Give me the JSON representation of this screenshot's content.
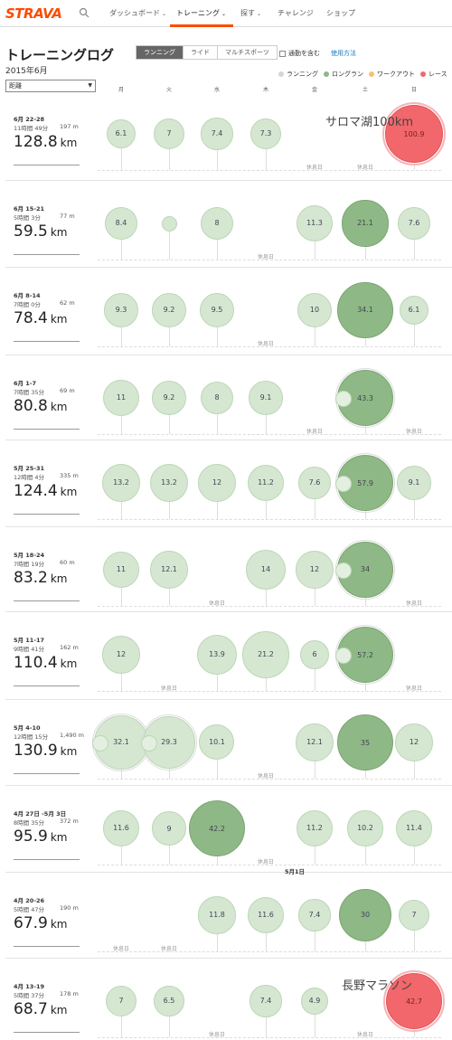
{
  "nav": {
    "logo": "STRAVA",
    "items": [
      {
        "label": "ダッシュボード",
        "caret": true
      },
      {
        "label": "トレーニング",
        "caret": true
      },
      {
        "label": "探す",
        "caret": true
      },
      {
        "label": "チャレンジ",
        "caret": false
      },
      {
        "label": "ショップ",
        "caret": false
      }
    ],
    "active_index": 1,
    "accent": "#fc4c02"
  },
  "header": {
    "title": "トレーニングログ",
    "month": "2015年6月",
    "sport_tabs": [
      "ランニング",
      "ライド",
      "マルチスポーツ"
    ],
    "active_sport": 0,
    "commute_label": "通勤を含む",
    "commute_checked": false,
    "help_link": "使用方法",
    "metric_select": "距離"
  },
  "legend": [
    {
      "label": "ランニング",
      "color": "#d5d5d5"
    },
    {
      "label": "ロングラン",
      "color": "#8eb885"
    },
    {
      "label": "ワークアウト",
      "color": "#f3c26b"
    },
    {
      "label": "レース",
      "color": "#f1676b"
    }
  ],
  "days": [
    "月",
    "火",
    "水",
    "木",
    "金",
    "土",
    "日"
  ],
  "rest_label": "休息日",
  "mid_label": "5月1日",
  "weeks": [
    {
      "date": "6月 22-28",
      "time": "11時間 49分",
      "elev": "197 m",
      "total": "128.8",
      "unit": "km",
      "race_label": "サロマ湖100km",
      "days": [
        {
          "v": "6.1",
          "t": "run"
        },
        {
          "v": "7",
          "t": "run"
        },
        {
          "v": "7.4",
          "t": "run"
        },
        {
          "v": "7.3",
          "t": "run"
        },
        {
          "rest": true
        },
        {
          "rest": true
        },
        {
          "v": "100.9",
          "t": "race"
        }
      ]
    },
    {
      "date": "6月 15-21",
      "time": "5時間 3分",
      "elev": "77 m",
      "total": "59.5",
      "unit": "km",
      "days": [
        {
          "v": "8.4",
          "t": "run"
        },
        {
          "v": "",
          "t": "run"
        },
        {
          "v": "8",
          "t": "run"
        },
        {
          "rest": true
        },
        {
          "v": "11.3",
          "t": "run"
        },
        {
          "v": "21.1",
          "t": "long"
        },
        {
          "v": "7.6",
          "t": "run"
        }
      ]
    },
    {
      "date": "6月 8-14",
      "time": "7時間 0分",
      "elev": "62 m",
      "total": "78.4",
      "unit": "km",
      "days": [
        {
          "v": "9.3",
          "t": "run"
        },
        {
          "v": "9.2",
          "t": "run"
        },
        {
          "v": "9.5",
          "t": "run"
        },
        {
          "rest": true
        },
        {
          "v": "10",
          "t": "run"
        },
        {
          "v": "34.1",
          "t": "long"
        },
        {
          "v": "6.1",
          "t": "run"
        }
      ]
    },
    {
      "date": "6月 1-7",
      "time": "7時間 35分",
      "elev": "69 m",
      "total": "80.8",
      "unit": "km",
      "days": [
        {
          "v": "11",
          "t": "run"
        },
        {
          "v": "9.2",
          "t": "run"
        },
        {
          "v": "8",
          "t": "run"
        },
        {
          "v": "9.1",
          "t": "run"
        },
        {
          "rest": true
        },
        {
          "v": "43.3",
          "t": "long",
          "multi": true
        },
        {
          "rest": true
        }
      ]
    },
    {
      "date": "5月 25-31",
      "time": "12時間 4分",
      "elev": "335 m",
      "total": "124.4",
      "unit": "km",
      "days": [
        {
          "v": "13.2",
          "t": "run"
        },
        {
          "v": "13.2",
          "t": "run"
        },
        {
          "v": "12",
          "t": "run"
        },
        {
          "v": "11.2",
          "t": "run"
        },
        {
          "v": "7.6",
          "t": "run"
        },
        {
          "v": "57.9",
          "t": "long",
          "multi": true
        },
        {
          "v": "9.1",
          "t": "run"
        }
      ]
    },
    {
      "date": "5月 18-24",
      "time": "7時間 19分",
      "elev": "60 m",
      "total": "83.2",
      "unit": "km",
      "days": [
        {
          "v": "11",
          "t": "run"
        },
        {
          "v": "12.1",
          "t": "run"
        },
        {
          "rest": true
        },
        {
          "v": "14",
          "t": "run"
        },
        {
          "v": "12",
          "t": "run"
        },
        {
          "v": "34",
          "t": "long",
          "multi": true
        },
        {
          "rest": true
        }
      ]
    },
    {
      "date": "5月 11-17",
      "time": "9時間 41分",
      "elev": "162 m",
      "total": "110.4",
      "unit": "km",
      "days": [
        {
          "v": "12",
          "t": "run"
        },
        {
          "rest": true
        },
        {
          "v": "13.9",
          "t": "run"
        },
        {
          "v": "21.2",
          "t": "run"
        },
        {
          "v": "6",
          "t": "run"
        },
        {
          "v": "57.2",
          "t": "long",
          "multi": true
        },
        {
          "rest": true
        }
      ]
    },
    {
      "date": "5月 4-10",
      "time": "12時間 15分",
      "elev": "1,490 m",
      "total": "130.9",
      "unit": "km",
      "days": [
        {
          "v": "32.1",
          "t": "run",
          "multi": true
        },
        {
          "v": "29.3",
          "t": "run",
          "multi": true
        },
        {
          "v": "10.1",
          "t": "run"
        },
        {
          "rest": true
        },
        {
          "v": "12.1",
          "t": "run"
        },
        {
          "v": "35",
          "t": "long"
        },
        {
          "v": "12",
          "t": "run"
        }
      ]
    },
    {
      "date": "4月 27日 -5月 3日",
      "time": "8時間 35分",
      "elev": "372 m",
      "total": "95.9",
      "unit": "km",
      "days": [
        {
          "v": "11.6",
          "t": "run"
        },
        {
          "v": "9",
          "t": "run"
        },
        {
          "v": "42.2",
          "t": "long"
        },
        {
          "rest": true
        },
        {
          "v": "11.2",
          "t": "run"
        },
        {
          "v": "10.2",
          "t": "run"
        },
        {
          "v": "11.4",
          "t": "run"
        }
      ]
    },
    {
      "date": "4月 20-26",
      "time": "5時間 47分",
      "elev": "190 m",
      "total": "67.9",
      "unit": "km",
      "days": [
        {
          "rest": true
        },
        {
          "rest": true
        },
        {
          "v": "11.8",
          "t": "run"
        },
        {
          "v": "11.6",
          "t": "run"
        },
        {
          "v": "7.4",
          "t": "run"
        },
        {
          "v": "30",
          "t": "long"
        },
        {
          "v": "7",
          "t": "run"
        }
      ]
    },
    {
      "date": "4月 13-19",
      "time": "5時間 37分",
      "elev": "178 m",
      "total": "68.7",
      "unit": "km",
      "race_label": "長野マラソン",
      "days": [
        {
          "v": "7",
          "t": "run"
        },
        {
          "v": "6.5",
          "t": "run"
        },
        {
          "rest": true
        },
        {
          "v": "7.4",
          "t": "run"
        },
        {
          "v": "4.9",
          "t": "run"
        },
        {
          "rest": true
        },
        {
          "v": "42.7",
          "t": "race"
        }
      ]
    }
  ]
}
